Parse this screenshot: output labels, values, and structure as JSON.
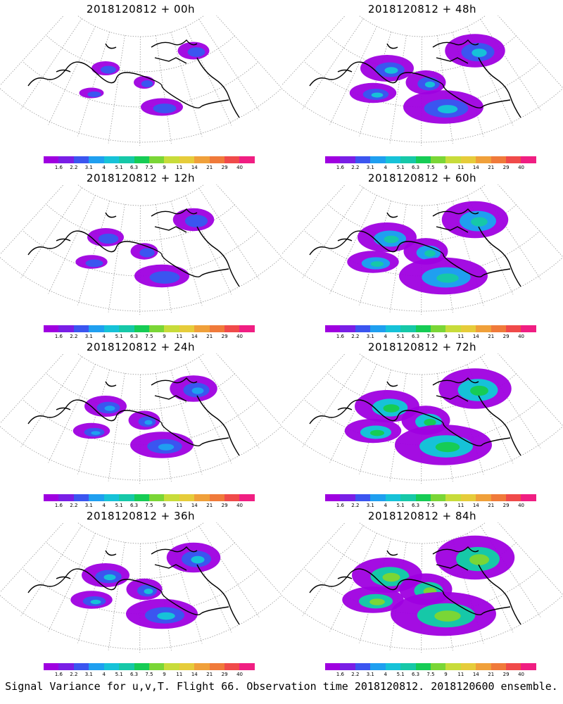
{
  "caption": "Signal Variance for u,v,T. Flight 66. Observation time 2018120812. 2018120600 ensemble.",
  "panels": [
    {
      "title": "2018120812 + 00h",
      "level": 0.1
    },
    {
      "title": "2018120812 + 48h",
      "level": 0.55
    },
    {
      "title": "2018120812 + 12h",
      "level": 0.25
    },
    {
      "title": "2018120812 + 60h",
      "level": 0.65
    },
    {
      "title": "2018120812 + 24h",
      "level": 0.35
    },
    {
      "title": "2018120812 + 72h",
      "level": 0.75
    },
    {
      "title": "2018120812 + 36h",
      "level": 0.45
    },
    {
      "title": "2018120812 + 84h",
      "level": 0.85
    }
  ],
  "colorbar": {
    "colors": [
      "#9f00e0",
      "#7a1ee6",
      "#3b55f0",
      "#1f9ff0",
      "#16c2d8",
      "#16c8a8",
      "#16cc55",
      "#7ad636",
      "#c8dc3a",
      "#e6cc3a",
      "#f0a03a",
      "#f07a3a",
      "#f04a4a",
      "#f01e82"
    ],
    "labels": [
      "1.6",
      "2.2",
      "3.1",
      "4",
      "5.1",
      "6.3",
      "7.5",
      "9",
      "11",
      "14",
      "21",
      "29",
      "40"
    ]
  }
}
